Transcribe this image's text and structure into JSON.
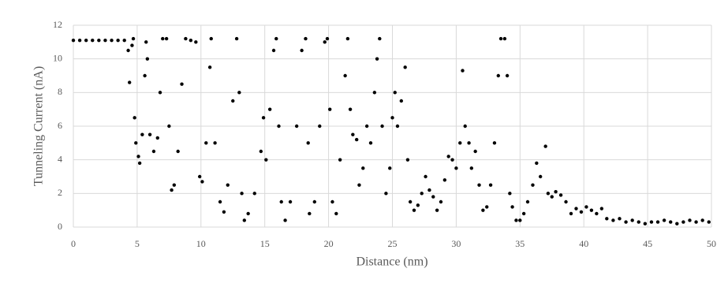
{
  "chart_data": {
    "type": "scatter",
    "x_label": "Distance (nm)",
    "y_label": "Tunneling Current (nA)",
    "color": "#000000",
    "grid": true,
    "xlim": [
      0,
      50
    ],
    "xticks": [
      0,
      5,
      10,
      15,
      20,
      25,
      30,
      35,
      40,
      45,
      50
    ],
    "ylim": [
      0,
      12
    ],
    "yticks": [
      0,
      2,
      4,
      6,
      8,
      10,
      12
    ],
    "x": [
      0,
      0.5,
      1,
      1.5,
      2,
      2.5,
      3,
      3.5,
      4,
      4.3,
      4.4,
      4.6,
      4.7,
      4.8,
      4.9,
      5.1,
      5.2,
      5.4,
      5.6,
      5.7,
      5.8,
      6.0,
      6.3,
      6.6,
      6.8,
      7.0,
      7.3,
      7.5,
      7.7,
      7.9,
      8.2,
      8.5,
      8.8,
      9.2,
      9.6,
      9.9,
      10.1,
      10.4,
      10.7,
      10.8,
      11.1,
      11.5,
      11.8,
      12.1,
      12.5,
      12.8,
      13.0,
      13.2,
      13.4,
      13.7,
      14.2,
      14.7,
      14.9,
      15.1,
      15.4,
      15.7,
      15.9,
      16.1,
      16.3,
      16.6,
      17.0,
      17.5,
      17.9,
      18.2,
      18.4,
      18.5,
      18.9,
      19.3,
      19.7,
      19.9,
      20.1,
      20.3,
      20.6,
      20.9,
      21.3,
      21.5,
      21.7,
      21.9,
      22.2,
      22.4,
      22.7,
      23.0,
      23.3,
      23.6,
      23.8,
      24.0,
      24.2,
      24.5,
      24.8,
      25.0,
      25.2,
      25.4,
      25.7,
      26.0,
      26.2,
      26.4,
      26.7,
      27.0,
      27.3,
      27.6,
      27.9,
      28.2,
      28.5,
      28.8,
      29.1,
      29.4,
      29.7,
      30.0,
      30.3,
      30.5,
      30.7,
      31.0,
      31.2,
      31.5,
      31.8,
      32.1,
      32.4,
      32.7,
      33.0,
      33.3,
      33.5,
      33.8,
      34.0,
      34.2,
      34.4,
      34.7,
      35.0,
      35.3,
      35.6,
      36.0,
      36.3,
      36.6,
      37.0,
      37.2,
      37.5,
      37.8,
      38.2,
      38.6,
      39.0,
      39.4,
      39.8,
      40.2,
      40.6,
      41.0,
      41.4,
      41.8,
      42.3,
      42.8,
      43.3,
      43.8,
      44.3,
      44.8,
      45.3,
      45.8,
      46.3,
      46.8,
      47.3,
      47.8,
      48.3,
      48.8,
      49.3,
      49.8
    ],
    "values": [
      11.1,
      11.1,
      11.1,
      11.1,
      11.1,
      11.1,
      11.1,
      11.1,
      11.1,
      10.5,
      8.6,
      10.8,
      11.2,
      6.5,
      5,
      4.2,
      3.8,
      5.5,
      9,
      11,
      10,
      5.5,
      4.5,
      5.3,
      8,
      11.2,
      11.2,
      6,
      2.2,
      2.5,
      4.5,
      8.5,
      11.2,
      11.1,
      11,
      3,
      2.7,
      5,
      9.5,
      11.2,
      5,
      1.5,
      0.9,
      2.5,
      7.5,
      11.2,
      8,
      2,
      0.4,
      0.8,
      2,
      4.5,
      6.5,
      4,
      7,
      10.5,
      11.2,
      6,
      1.5,
      0.4,
      1.5,
      6,
      10.5,
      11.2,
      5,
      0.8,
      1.5,
      6,
      11,
      11.2,
      7,
      1.5,
      0.8,
      4,
      9,
      11.2,
      7,
      5.5,
      5.2,
      2.5,
      3.5,
      6,
      5,
      8,
      10,
      11.2,
      6,
      2,
      3.5,
      6.5,
      8,
      6,
      7.5,
      9.5,
      4,
      1.5,
      1,
      1.3,
      2,
      3,
      2.2,
      1.8,
      1,
      1.5,
      2.8,
      4.2,
      4,
      3.5,
      5,
      9.3,
      6,
      5,
      3.5,
      4.5,
      2.5,
      1,
      1.2,
      2.5,
      5,
      9,
      11.2,
      11.2,
      9,
      2,
      1.2,
      0.4,
      0.4,
      0.8,
      1.5,
      2.5,
      3.8,
      3,
      4.8,
      2,
      1.8,
      2.1,
      1.9,
      1.5,
      0.8,
      1.1,
      0.9,
      1.2,
      1,
      0.8,
      1.1,
      0.5,
      0.4,
      0.5,
      0.3,
      0.4,
      0.3,
      0.2,
      0.3,
      0.3,
      0.4,
      0.3,
      0.2,
      0.3,
      0.4,
      0.3,
      0.4,
      0.3
    ]
  }
}
